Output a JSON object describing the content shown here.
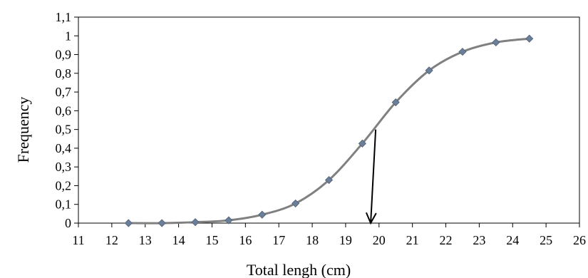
{
  "chart_data": {
    "type": "line",
    "xlabel": "Total lengh (cm)",
    "ylabel": "Frequency",
    "xlim": [
      11,
      26
    ],
    "ylim": [
      0,
      1.1
    ],
    "x_ticks": [
      "11",
      "12",
      "13",
      "14",
      "15",
      "16",
      "17",
      "18",
      "19",
      "20",
      "21",
      "22",
      "23",
      "24",
      "25",
      "26"
    ],
    "y_ticks": [
      "0",
      "0,1",
      "0,2",
      "0,3",
      "0,4",
      "0,5",
      "0,6",
      "0,7",
      "0,8",
      "0,9",
      "1",
      "1,1"
    ],
    "grid": false,
    "series": [
      {
        "x": [
          12.5,
          13.5,
          14.5,
          15.5,
          16.5,
          17.5,
          18.5,
          19.5,
          20.5,
          21.5,
          22.5,
          23.5,
          24.5
        ],
        "y": [
          0.0,
          0.0,
          0.005,
          0.015,
          0.045,
          0.105,
          0.23,
          0.425,
          0.645,
          0.815,
          0.915,
          0.965,
          0.985
        ],
        "marker": "diamond",
        "color": "#808080",
        "marker_color": "#6b7f99"
      }
    ],
    "annotation": {
      "type": "arrow",
      "x_start": 19.9,
      "y_start": 0.5,
      "x_end": 19.75,
      "y_end": 0.0,
      "color": "#000000"
    }
  }
}
